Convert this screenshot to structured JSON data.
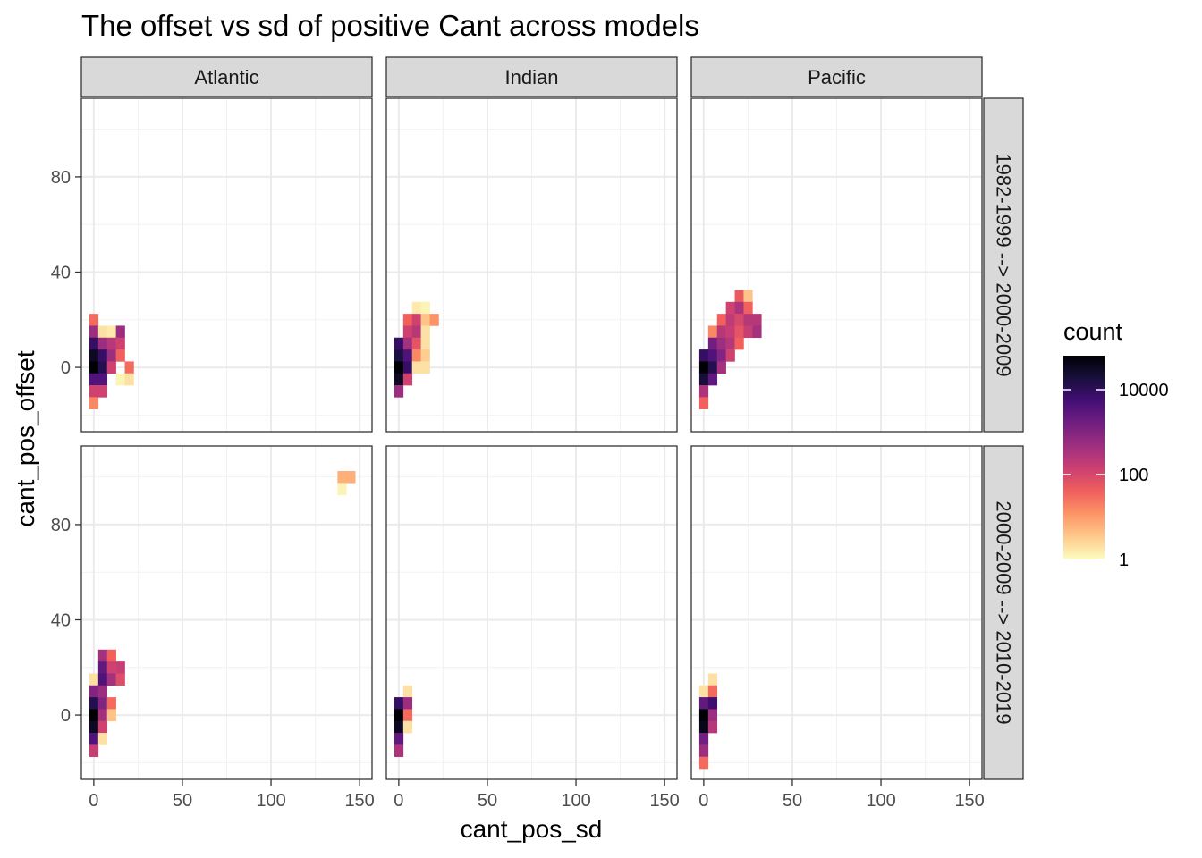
{
  "chart_data": {
    "type": "heatmap",
    "title": "The offset vs sd of positive Cant across models",
    "xlabel": "cant_pos_sd",
    "ylabel": "cant_pos_offset",
    "xlim": [
      -7,
      157
    ],
    "ylim": [
      -27,
      113
    ],
    "x_ticks": [
      0,
      50,
      100,
      150
    ],
    "x_tick_labels": [
      "0",
      "50",
      "100",
      "150"
    ],
    "y_ticks": [
      0,
      40,
      80
    ],
    "y_tick_labels": [
      "0",
      "40",
      "80"
    ],
    "bin_width": {
      "x": 5,
      "y": 5
    },
    "columns": [
      "Atlantic",
      "Indian",
      "Pacific"
    ],
    "rows": [
      "1982-1999 --> 2000-2009",
      "2000-2009 --> 2010-2019"
    ],
    "legend": {
      "title": "count",
      "scale": "log10",
      "breaks": [
        1,
        100,
        10000
      ],
      "break_labels": [
        "1",
        "100",
        "10000"
      ],
      "range_log10": [
        0,
        4.8
      ],
      "colors": [
        "#FCFDBF",
        "#FECA8D",
        "#FD9567",
        "#F1605D",
        "#CD4071",
        "#9E2F7F",
        "#721F81",
        "#440F76",
        "#180F3D",
        "#000004"
      ]
    },
    "panels": [
      {
        "col": "Atlantic",
        "row": "1982-1999 --> 2000-2009",
        "cells": [
          [
            0,
            20,
            1.5
          ],
          [
            0,
            15,
            2.7
          ],
          [
            0,
            10,
            3.9
          ],
          [
            0,
            5,
            4.5
          ],
          [
            0,
            0,
            4.8
          ],
          [
            0,
            -5,
            3.6
          ],
          [
            0,
            -10,
            2.1
          ],
          [
            0,
            -15,
            1.2
          ],
          [
            5,
            15,
            0.3
          ],
          [
            5,
            10,
            2.7
          ],
          [
            5,
            5,
            3.9
          ],
          [
            5,
            0,
            4.1
          ],
          [
            5,
            -5,
            3.6
          ],
          [
            5,
            -10,
            2.1
          ],
          [
            10,
            15,
            0.2
          ],
          [
            10,
            10,
            2.4
          ],
          [
            10,
            5,
            2.7
          ],
          [
            10,
            0,
            2.1
          ],
          [
            15,
            15,
            2.7
          ],
          [
            15,
            10,
            2.1
          ],
          [
            15,
            5,
            1.6
          ],
          [
            15,
            -5,
            0.1
          ],
          [
            20,
            0,
            1.5
          ],
          [
            20,
            -5,
            0.3
          ]
        ]
      },
      {
        "col": "Indian",
        "row": "1982-1999 --> 2000-2009",
        "cells": [
          [
            0,
            10,
            3.9
          ],
          [
            0,
            5,
            4.2
          ],
          [
            0,
            0,
            4.8
          ],
          [
            0,
            -5,
            4.5
          ],
          [
            0,
            -10,
            2.7
          ],
          [
            5,
            20,
            1.6
          ],
          [
            5,
            15,
            2.1
          ],
          [
            5,
            10,
            2.6
          ],
          [
            5,
            5,
            3.6
          ],
          [
            5,
            0,
            3.9
          ],
          [
            5,
            -5,
            2.1
          ],
          [
            10,
            25,
            0.2
          ],
          [
            10,
            20,
            2.1
          ],
          [
            10,
            15,
            2.4
          ],
          [
            10,
            10,
            1.8
          ],
          [
            10,
            5,
            1.2
          ],
          [
            10,
            0,
            0.3
          ],
          [
            15,
            25,
            0.1
          ],
          [
            15,
            20,
            0.6
          ],
          [
            15,
            15,
            0.3
          ],
          [
            15,
            10,
            0.3
          ],
          [
            15,
            5,
            0.5
          ],
          [
            15,
            0,
            0.3
          ],
          [
            20,
            20,
            1.1
          ]
        ]
      },
      {
        "col": "Pacific",
        "row": "1982-1999 --> 2000-2009",
        "cells": [
          [
            0,
            5,
            3.9
          ],
          [
            0,
            0,
            4.8
          ],
          [
            0,
            -5,
            4.3
          ],
          [
            0,
            -10,
            2.5
          ],
          [
            0,
            -15,
            1.6
          ],
          [
            5,
            15,
            1.2
          ],
          [
            5,
            10,
            3.2
          ],
          [
            5,
            5,
            3.6
          ],
          [
            5,
            0,
            4.1
          ],
          [
            5,
            -5,
            3.4
          ],
          [
            10,
            20,
            1.6
          ],
          [
            10,
            15,
            2.4
          ],
          [
            10,
            10,
            2.7
          ],
          [
            10,
            5,
            3.0
          ],
          [
            10,
            0,
            2.6
          ],
          [
            15,
            25,
            2.1
          ],
          [
            15,
            20,
            2.3
          ],
          [
            15,
            15,
            2.2
          ],
          [
            15,
            10,
            2.4
          ],
          [
            15,
            5,
            2.1
          ],
          [
            20,
            30,
            1.7
          ],
          [
            20,
            25,
            2.5
          ],
          [
            20,
            20,
            2.0
          ],
          [
            20,
            15,
            1.8
          ],
          [
            20,
            10,
            1.6
          ],
          [
            25,
            30,
            0.6
          ],
          [
            25,
            25,
            1.6
          ],
          [
            25,
            20,
            2.4
          ],
          [
            25,
            15,
            2.2
          ],
          [
            30,
            20,
            2.4
          ],
          [
            30,
            15,
            2.6
          ]
        ]
      },
      {
        "col": "Atlantic",
        "row": "2000-2009 --> 2010-2019",
        "cells": [
          [
            0,
            15,
            0.3
          ],
          [
            0,
            10,
            3.0
          ],
          [
            0,
            5,
            4.1
          ],
          [
            0,
            0,
            4.8
          ],
          [
            0,
            -5,
            4.5
          ],
          [
            0,
            -10,
            3.6
          ],
          [
            0,
            -15,
            2.2
          ],
          [
            5,
            25,
            2.6
          ],
          [
            5,
            20,
            3.4
          ],
          [
            5,
            15,
            3.6
          ],
          [
            5,
            10,
            2.7
          ],
          [
            5,
            5,
            3.0
          ],
          [
            5,
            0,
            2.6
          ],
          [
            5,
            -5,
            2.1
          ],
          [
            5,
            -10,
            0.3
          ],
          [
            10,
            25,
            1.6
          ],
          [
            10,
            20,
            2.1
          ],
          [
            10,
            15,
            2.6
          ],
          [
            10,
            5,
            1.5
          ],
          [
            10,
            0,
            0.6
          ],
          [
            15,
            20,
            2.2
          ],
          [
            15,
            15,
            1.9
          ],
          [
            140,
            100,
            0.8
          ],
          [
            140,
            95,
            0.1
          ],
          [
            145,
            100,
            0.8
          ]
        ]
      },
      {
        "col": "Indian",
        "row": "2000-2009 --> 2010-2019",
        "cells": [
          [
            0,
            5,
            3.9
          ],
          [
            0,
            0,
            4.8
          ],
          [
            0,
            -5,
            4.5
          ],
          [
            0,
            -10,
            3.4
          ],
          [
            0,
            -15,
            2.5
          ],
          [
            5,
            10,
            0.3
          ],
          [
            5,
            5,
            2.7
          ],
          [
            5,
            0,
            1.5
          ],
          [
            5,
            -5,
            0.3
          ]
        ]
      },
      {
        "col": "Pacific",
        "row": "2000-2009 --> 2010-2019",
        "cells": [
          [
            0,
            10,
            0.3
          ],
          [
            0,
            5,
            3.4
          ],
          [
            0,
            0,
            4.8
          ],
          [
            0,
            -5,
            4.6
          ],
          [
            0,
            -10,
            3.2
          ],
          [
            0,
            -15,
            2.7
          ],
          [
            0,
            -20,
            1.5
          ],
          [
            5,
            15,
            0.3
          ],
          [
            5,
            10,
            1.5
          ],
          [
            5,
            5,
            3.8
          ],
          [
            5,
            0,
            2.7
          ],
          [
            5,
            -5,
            2.4
          ]
        ]
      }
    ]
  }
}
